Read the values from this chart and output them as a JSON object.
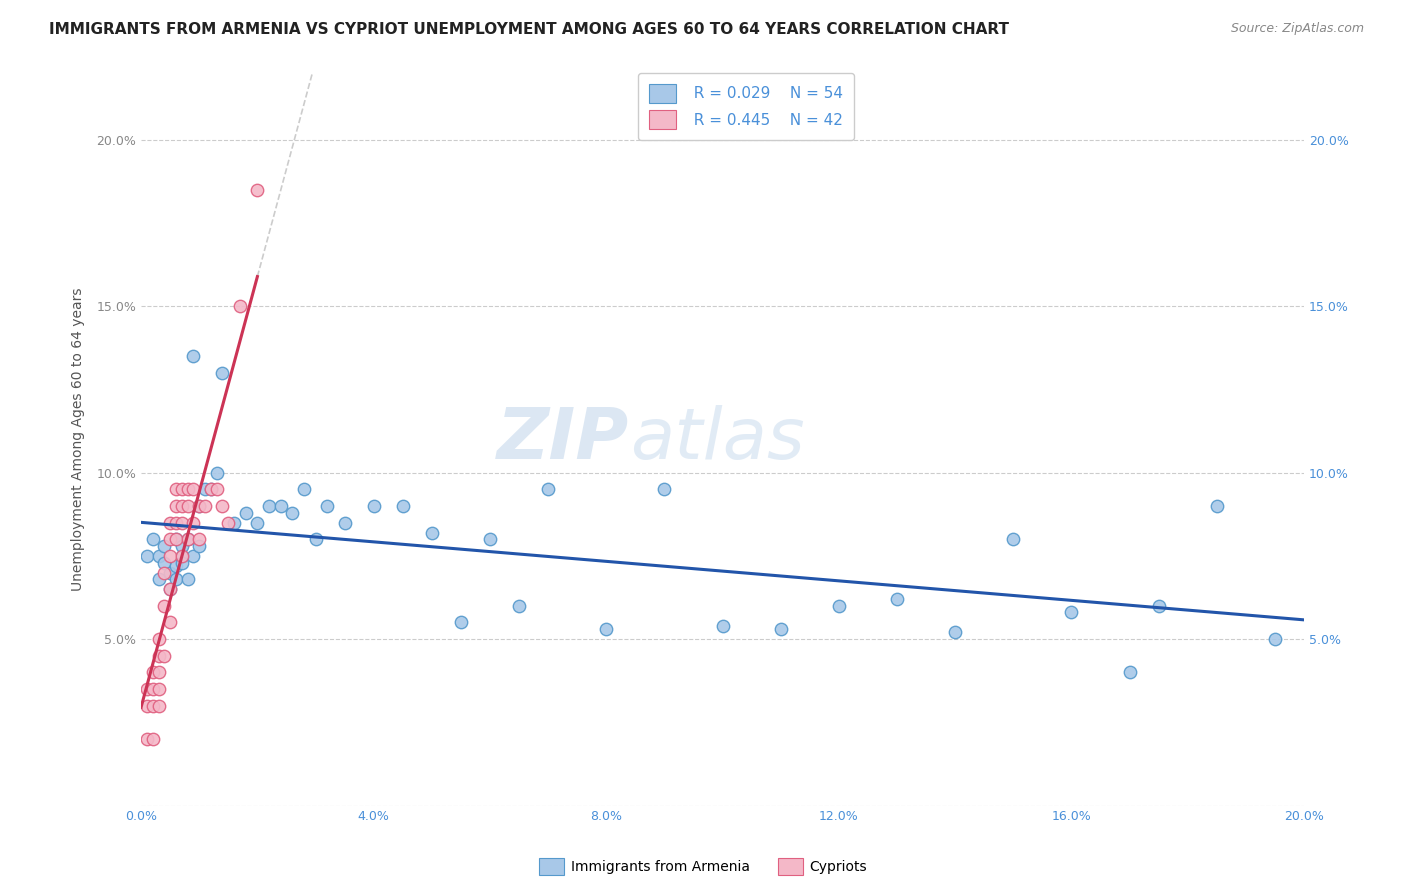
{
  "title": "IMMIGRANTS FROM ARMENIA VS CYPRIOT UNEMPLOYMENT AMONG AGES 60 TO 64 YEARS CORRELATION CHART",
  "source": "Source: ZipAtlas.com",
  "ylabel": "Unemployment Among Ages 60 to 64 years",
  "xlim": [
    0.0,
    0.2
  ],
  "ylim": [
    0.0,
    0.22
  ],
  "xtick_vals": [
    0.0,
    0.04,
    0.08,
    0.12,
    0.16,
    0.2
  ],
  "ytick_vals": [
    0.0,
    0.05,
    0.1,
    0.15,
    0.2
  ],
  "xtick_labels": [
    "0.0%",
    "4.0%",
    "8.0%",
    "12.0%",
    "16.0%",
    "20.0%"
  ],
  "ytick_labels_left": [
    "",
    "5.0%",
    "10.0%",
    "15.0%",
    "20.0%"
  ],
  "ytick_labels_right": [
    "",
    "5.0%",
    "10.0%",
    "15.0%",
    "20.0%"
  ],
  "background_color": "#ffffff",
  "grid_color": "#cccccc",
  "blue_scatter_color": "#a8c8e8",
  "blue_edge_color": "#5599cc",
  "pink_scatter_color": "#f4b8c8",
  "pink_edge_color": "#e06080",
  "trend_blue_color": "#2255aa",
  "trend_pink_color": "#cc3355",
  "trend_diag_color": "#cccccc",
  "legend_r_blue": "R = 0.029",
  "legend_n_blue": "N = 54",
  "legend_r_pink": "R = 0.445",
  "legend_n_pink": "N = 42",
  "label_blue": "Immigrants from Armenia",
  "label_pink": "Cypriots",
  "watermark": "ZIPatlas",
  "title_color": "#222222",
  "source_color": "#888888",
  "ylabel_color": "#555555",
  "left_tick_color": "#888888",
  "right_tick_color": "#4a90d9",
  "bottom_tick_color": "#4a90d9",
  "legend_text_color": "#4a90d9",
  "title_fontsize": 11,
  "source_fontsize": 9,
  "ylabel_fontsize": 10,
  "tick_fontsize": 9,
  "legend_fontsize": 11,
  "series_blue_x": [
    0.001,
    0.002,
    0.003,
    0.003,
    0.004,
    0.004,
    0.005,
    0.005,
    0.006,
    0.006,
    0.006,
    0.007,
    0.007,
    0.007,
    0.008,
    0.008,
    0.009,
    0.009,
    0.01,
    0.01,
    0.011,
    0.012,
    0.013,
    0.014,
    0.016,
    0.018,
    0.02,
    0.022,
    0.024,
    0.026,
    0.028,
    0.03,
    0.032,
    0.035,
    0.04,
    0.045,
    0.05,
    0.055,
    0.06,
    0.065,
    0.07,
    0.08,
    0.09,
    0.1,
    0.11,
    0.12,
    0.13,
    0.14,
    0.15,
    0.16,
    0.17,
    0.175,
    0.185,
    0.195
  ],
  "series_blue_y": [
    0.075,
    0.08,
    0.068,
    0.075,
    0.073,
    0.078,
    0.07,
    0.065,
    0.072,
    0.068,
    0.08,
    0.075,
    0.073,
    0.078,
    0.08,
    0.068,
    0.135,
    0.075,
    0.09,
    0.078,
    0.095,
    0.095,
    0.1,
    0.13,
    0.085,
    0.088,
    0.085,
    0.09,
    0.09,
    0.088,
    0.095,
    0.08,
    0.09,
    0.085,
    0.09,
    0.09,
    0.082,
    0.055,
    0.08,
    0.06,
    0.095,
    0.053,
    0.095,
    0.054,
    0.053,
    0.06,
    0.062,
    0.052,
    0.08,
    0.058,
    0.04,
    0.06,
    0.09,
    0.05
  ],
  "series_pink_x": [
    0.001,
    0.001,
    0.001,
    0.002,
    0.002,
    0.002,
    0.002,
    0.003,
    0.003,
    0.003,
    0.003,
    0.003,
    0.004,
    0.004,
    0.004,
    0.005,
    0.005,
    0.005,
    0.005,
    0.005,
    0.006,
    0.006,
    0.006,
    0.006,
    0.007,
    0.007,
    0.007,
    0.007,
    0.008,
    0.008,
    0.008,
    0.009,
    0.009,
    0.01,
    0.01,
    0.011,
    0.012,
    0.013,
    0.014,
    0.015,
    0.017,
    0.02
  ],
  "series_pink_y": [
    0.02,
    0.03,
    0.035,
    0.02,
    0.03,
    0.035,
    0.04,
    0.03,
    0.035,
    0.04,
    0.045,
    0.05,
    0.045,
    0.06,
    0.07,
    0.055,
    0.065,
    0.075,
    0.08,
    0.085,
    0.08,
    0.085,
    0.09,
    0.095,
    0.075,
    0.085,
    0.09,
    0.095,
    0.08,
    0.09,
    0.095,
    0.085,
    0.095,
    0.08,
    0.09,
    0.09,
    0.095,
    0.095,
    0.09,
    0.085,
    0.15,
    0.185
  ]
}
